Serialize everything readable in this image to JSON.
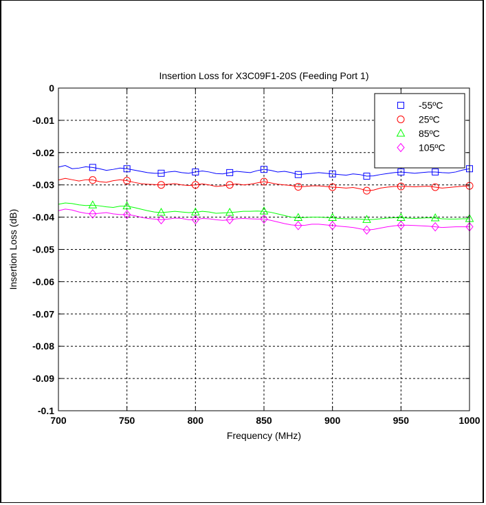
{
  "chart_data": {
    "type": "line",
    "title": "Insertion Loss for X3C09F1-20S (Feeding Port 1)",
    "xlabel": "Frequency (MHz)",
    "ylabel": "Insertion Loss (dB)",
    "xlim": [
      700,
      1000
    ],
    "ylim": [
      -0.1,
      0
    ],
    "xticks": [
      700,
      750,
      800,
      850,
      900,
      950,
      1000
    ],
    "yticks": [
      0,
      -0.01,
      -0.02,
      -0.03,
      -0.04,
      -0.05,
      -0.06,
      -0.07,
      -0.08,
      -0.09,
      -0.1
    ],
    "xtick_labels": [
      "700",
      "750",
      "800",
      "850",
      "900",
      "950",
      "1000"
    ],
    "ytick_labels": [
      "0",
      "-0.01",
      "-0.02",
      "-0.03",
      "-0.04",
      "-0.05",
      "-0.06",
      "-0.07",
      "-0.08",
      "-0.09",
      "-0.1"
    ],
    "grid": true,
    "legend_position": "top-right",
    "x": [
      700,
      705,
      710,
      715,
      720,
      725,
      730,
      735,
      740,
      745,
      750,
      755,
      760,
      765,
      770,
      775,
      780,
      785,
      790,
      795,
      800,
      805,
      810,
      815,
      820,
      825,
      830,
      835,
      840,
      845,
      850,
      855,
      860,
      865,
      870,
      875,
      880,
      885,
      890,
      895,
      900,
      905,
      910,
      915,
      920,
      925,
      930,
      935,
      940,
      945,
      950,
      955,
      960,
      965,
      970,
      975,
      980,
      985,
      990,
      995,
      1000
    ],
    "marker_x": [
      725,
      750,
      775,
      800,
      825,
      850,
      875,
      900,
      925,
      950,
      975,
      1000
    ],
    "series": [
      {
        "name": "-55ºC",
        "color": "#0000ff",
        "marker": "square",
        "values": [
          -0.0245,
          -0.024,
          -0.025,
          -0.0248,
          -0.0244,
          -0.0246,
          -0.025,
          -0.0255,
          -0.0252,
          -0.0248,
          -0.025,
          -0.0254,
          -0.0258,
          -0.0262,
          -0.0264,
          -0.0264,
          -0.026,
          -0.0258,
          -0.0262,
          -0.0264,
          -0.026,
          -0.0257,
          -0.026,
          -0.0265,
          -0.0266,
          -0.0262,
          -0.0258,
          -0.026,
          -0.0262,
          -0.0256,
          -0.0252,
          -0.0255,
          -0.026,
          -0.0258,
          -0.0262,
          -0.0268,
          -0.0266,
          -0.0264,
          -0.0262,
          -0.0264,
          -0.0266,
          -0.0268,
          -0.027,
          -0.0266,
          -0.0268,
          -0.0273,
          -0.0272,
          -0.0268,
          -0.0265,
          -0.0262,
          -0.026,
          -0.0262,
          -0.0264,
          -0.0262,
          -0.026,
          -0.026,
          -0.0262,
          -0.0263,
          -0.026,
          -0.0254,
          -0.025
        ]
      },
      {
        "name": "25ºC",
        "color": "#ff0000",
        "marker": "circle",
        "values": [
          -0.0285,
          -0.028,
          -0.0284,
          -0.0288,
          -0.0284,
          -0.0285,
          -0.029,
          -0.0292,
          -0.0287,
          -0.0284,
          -0.0287,
          -0.0292,
          -0.0296,
          -0.0298,
          -0.0299,
          -0.03,
          -0.0298,
          -0.0296,
          -0.03,
          -0.0302,
          -0.03,
          -0.0297,
          -0.03,
          -0.0305,
          -0.0303,
          -0.03,
          -0.0297,
          -0.03,
          -0.0298,
          -0.0294,
          -0.029,
          -0.0294,
          -0.0298,
          -0.03,
          -0.0302,
          -0.0306,
          -0.0305,
          -0.0303,
          -0.0303,
          -0.0305,
          -0.0307,
          -0.0308,
          -0.031,
          -0.0308,
          -0.0312,
          -0.0318,
          -0.0316,
          -0.031,
          -0.0307,
          -0.0305,
          -0.0305,
          -0.0305,
          -0.0306,
          -0.0305,
          -0.0304,
          -0.0307,
          -0.031,
          -0.0308,
          -0.0306,
          -0.0304,
          -0.0303
        ]
      },
      {
        "name": "85ºC",
        "color": "#00ff00",
        "marker": "triangle",
        "values": [
          -0.036,
          -0.0356,
          -0.0358,
          -0.0362,
          -0.0364,
          -0.0363,
          -0.0365,
          -0.0368,
          -0.037,
          -0.0366,
          -0.0366,
          -0.037,
          -0.0375,
          -0.038,
          -0.0384,
          -0.0386,
          -0.0384,
          -0.0382,
          -0.0384,
          -0.0386,
          -0.0385,
          -0.0382,
          -0.0384,
          -0.0388,
          -0.0387,
          -0.0386,
          -0.0384,
          -0.0382,
          -0.0382,
          -0.0381,
          -0.0382,
          -0.0385,
          -0.039,
          -0.0395,
          -0.04,
          -0.0402,
          -0.0401,
          -0.04,
          -0.04,
          -0.0401,
          -0.0402,
          -0.0404,
          -0.0405,
          -0.0405,
          -0.0406,
          -0.0408,
          -0.0407,
          -0.0405,
          -0.0403,
          -0.0402,
          -0.0402,
          -0.0403,
          -0.0404,
          -0.0403,
          -0.0402,
          -0.0403,
          -0.0405,
          -0.0406,
          -0.0406,
          -0.0405,
          -0.0405
        ]
      },
      {
        "name": "105ºC",
        "color": "#ff00ff",
        "marker": "diamond",
        "values": [
          -0.038,
          -0.0375,
          -0.0378,
          -0.0384,
          -0.0388,
          -0.039,
          -0.0388,
          -0.0386,
          -0.039,
          -0.0392,
          -0.0392,
          -0.0395,
          -0.04,
          -0.0404,
          -0.0406,
          -0.0408,
          -0.0406,
          -0.0403,
          -0.0404,
          -0.0408,
          -0.0408,
          -0.0404,
          -0.0405,
          -0.0408,
          -0.041,
          -0.0408,
          -0.0405,
          -0.0404,
          -0.0405,
          -0.0406,
          -0.0406,
          -0.041,
          -0.0415,
          -0.042,
          -0.0424,
          -0.0426,
          -0.0425,
          -0.0422,
          -0.0422,
          -0.0424,
          -0.0426,
          -0.0428,
          -0.043,
          -0.0432,
          -0.0436,
          -0.044,
          -0.0438,
          -0.0434,
          -0.043,
          -0.0427,
          -0.0425,
          -0.0425,
          -0.0426,
          -0.0427,
          -0.0428,
          -0.043,
          -0.0432,
          -0.0431,
          -0.043,
          -0.043,
          -0.043
        ]
      }
    ]
  }
}
